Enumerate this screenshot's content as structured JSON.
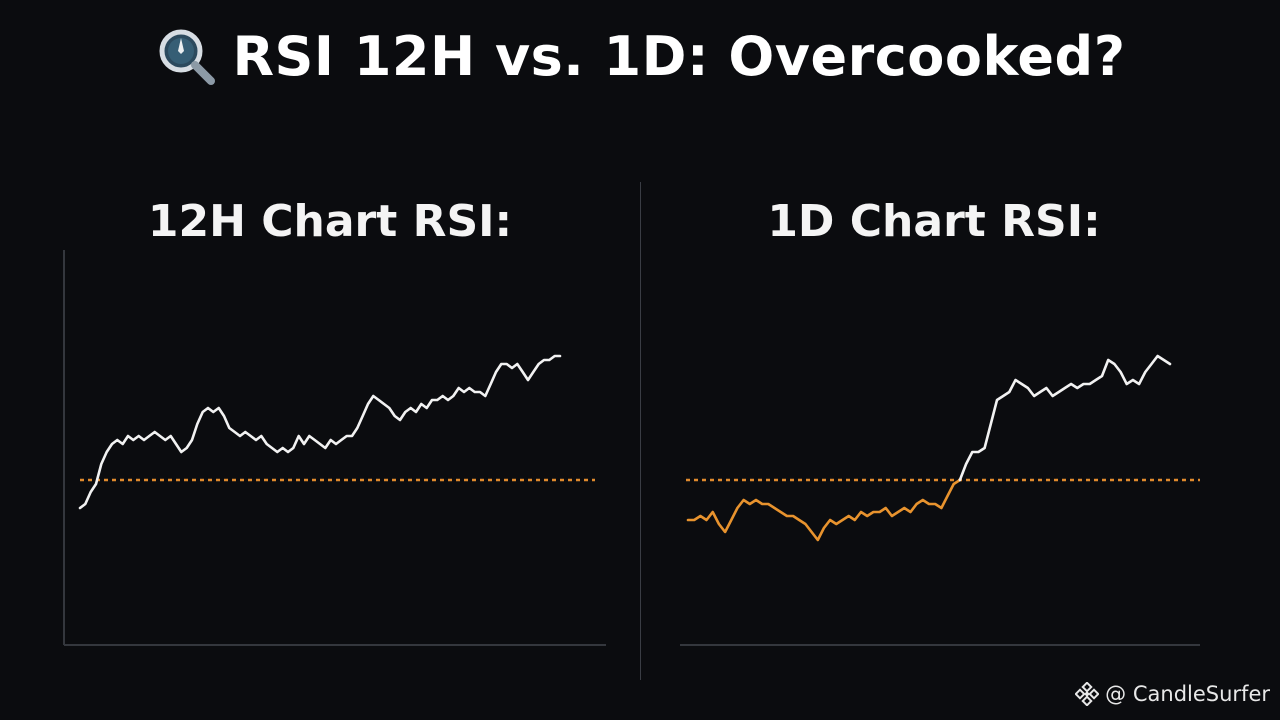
{
  "title": {
    "icon": "magnifier-icon",
    "text": "RSI 12H vs. 1D: Overcooked?"
  },
  "watermark": {
    "icon": "binance-logo-icon",
    "text": "@ CandleSurfer"
  },
  "colors": {
    "background": "#0b0c0f",
    "line_white": "#f2f2f2",
    "line_orange": "#e8932e",
    "reference_line": "#e08a2e",
    "axis": "#34373d"
  },
  "chart_data": [
    {
      "type": "line",
      "title": "12H Chart RSI:",
      "xlabel": "",
      "ylabel": "",
      "grid": false,
      "reference_line": 50,
      "ylim": [
        20,
        100
      ],
      "series": [
        {
          "color": "#f2f2f2",
          "values": [
            43,
            44,
            47,
            49,
            54,
            57,
            59,
            60,
            59,
            61,
            60,
            61,
            60,
            61,
            62,
            61,
            60,
            61,
            59,
            57,
            58,
            60,
            64,
            67,
            68,
            67,
            68,
            66,
            63,
            62,
            61,
            62,
            61,
            60,
            61,
            59,
            58,
            57,
            58,
            57,
            58,
            61,
            59,
            61,
            60,
            59,
            58,
            60,
            59,
            60,
            61,
            61,
            63,
            66,
            69,
            71,
            70,
            69,
            68,
            66,
            65,
            67,
            68,
            67,
            69,
            68,
            70,
            70,
            71,
            70,
            71,
            73,
            72,
            73,
            72,
            72,
            71,
            74,
            77,
            79,
            79,
            78,
            79,
            77,
            75,
            77,
            79,
            80,
            80,
            81,
            81
          ]
        }
      ]
    },
    {
      "type": "line",
      "title": "1D Chart RSI:",
      "xlabel": "",
      "ylabel": "",
      "grid": false,
      "reference_line": 50,
      "ylim": [
        20,
        100
      ],
      "series": [
        {
          "color": "#e8932e",
          "values": [
            40,
            40,
            41,
            40,
            42,
            39,
            37,
            40,
            43,
            45,
            44,
            45,
            44,
            44,
            43,
            42,
            41,
            41,
            40,
            39,
            37,
            35,
            38,
            40,
            39,
            40,
            41,
            40,
            42,
            41,
            42,
            42,
            43,
            41,
            42,
            43,
            42,
            44,
            45,
            44,
            44,
            43,
            46,
            49,
            50
          ]
        },
        {
          "color": "#f2f2f2",
          "values": [
            50,
            54,
            57,
            57,
            58,
            64,
            70,
            71,
            72,
            75,
            74,
            73,
            71,
            72,
            73,
            71,
            72,
            73,
            74,
            73,
            74,
            74,
            75,
            76,
            80,
            79,
            77,
            74,
            75,
            74,
            77,
            79,
            81,
            80,
            79
          ]
        }
      ]
    }
  ]
}
